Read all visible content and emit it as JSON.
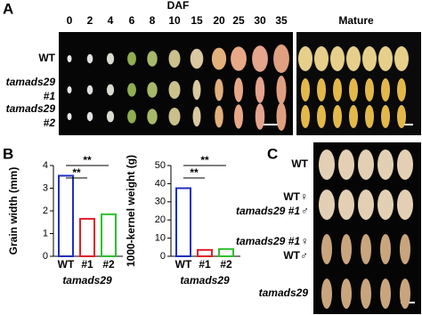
{
  "figure": {
    "A": {
      "label": "A",
      "heading": "DAF",
      "days": [
        0,
        2,
        4,
        6,
        8,
        10,
        15,
        20,
        25,
        30,
        35
      ],
      "mature": "Mature",
      "rows": [
        [
          "WT"
        ],
        [
          "tamads29",
          "#1"
        ],
        [
          "tamads29",
          "#2"
        ]
      ]
    },
    "B": {
      "label": "B"
    },
    "C": {
      "label": "C",
      "rows": [
        [
          "WT"
        ],
        [
          "WT♀",
          "tamads29 #1♂"
        ],
        [
          "tamads29 #1♀",
          "WT♂"
        ],
        [
          "tamads29"
        ]
      ]
    }
  },
  "chart_data": [
    {
      "type": "bar",
      "ylabel": "Grain width (mm)",
      "categories": [
        "WT",
        "#1",
        "#2"
      ],
      "values": [
        3.55,
        1.65,
        1.85
      ],
      "colors": [
        "#1f2fbf",
        "#e0202a",
        "#2fc02f"
      ],
      "ylim": [
        0,
        4
      ],
      "yticks": [
        0,
        1,
        2,
        3,
        4
      ],
      "xlabel": "tamads29",
      "annotations": [
        "**",
        "**"
      ]
    },
    {
      "type": "bar",
      "ylabel": "1000-kernel weight (g)",
      "categories": [
        "WT",
        "#1",
        "#2"
      ],
      "values": [
        37.5,
        3.5,
        4
      ],
      "colors": [
        "#1f2fbf",
        "#e0202a",
        "#2fc02f"
      ],
      "ylim": [
        0,
        50
      ],
      "yticks": [
        0,
        10,
        20,
        30,
        40,
        50
      ],
      "xlabel": "tamads29",
      "annotations": [
        "**",
        "**"
      ]
    }
  ]
}
